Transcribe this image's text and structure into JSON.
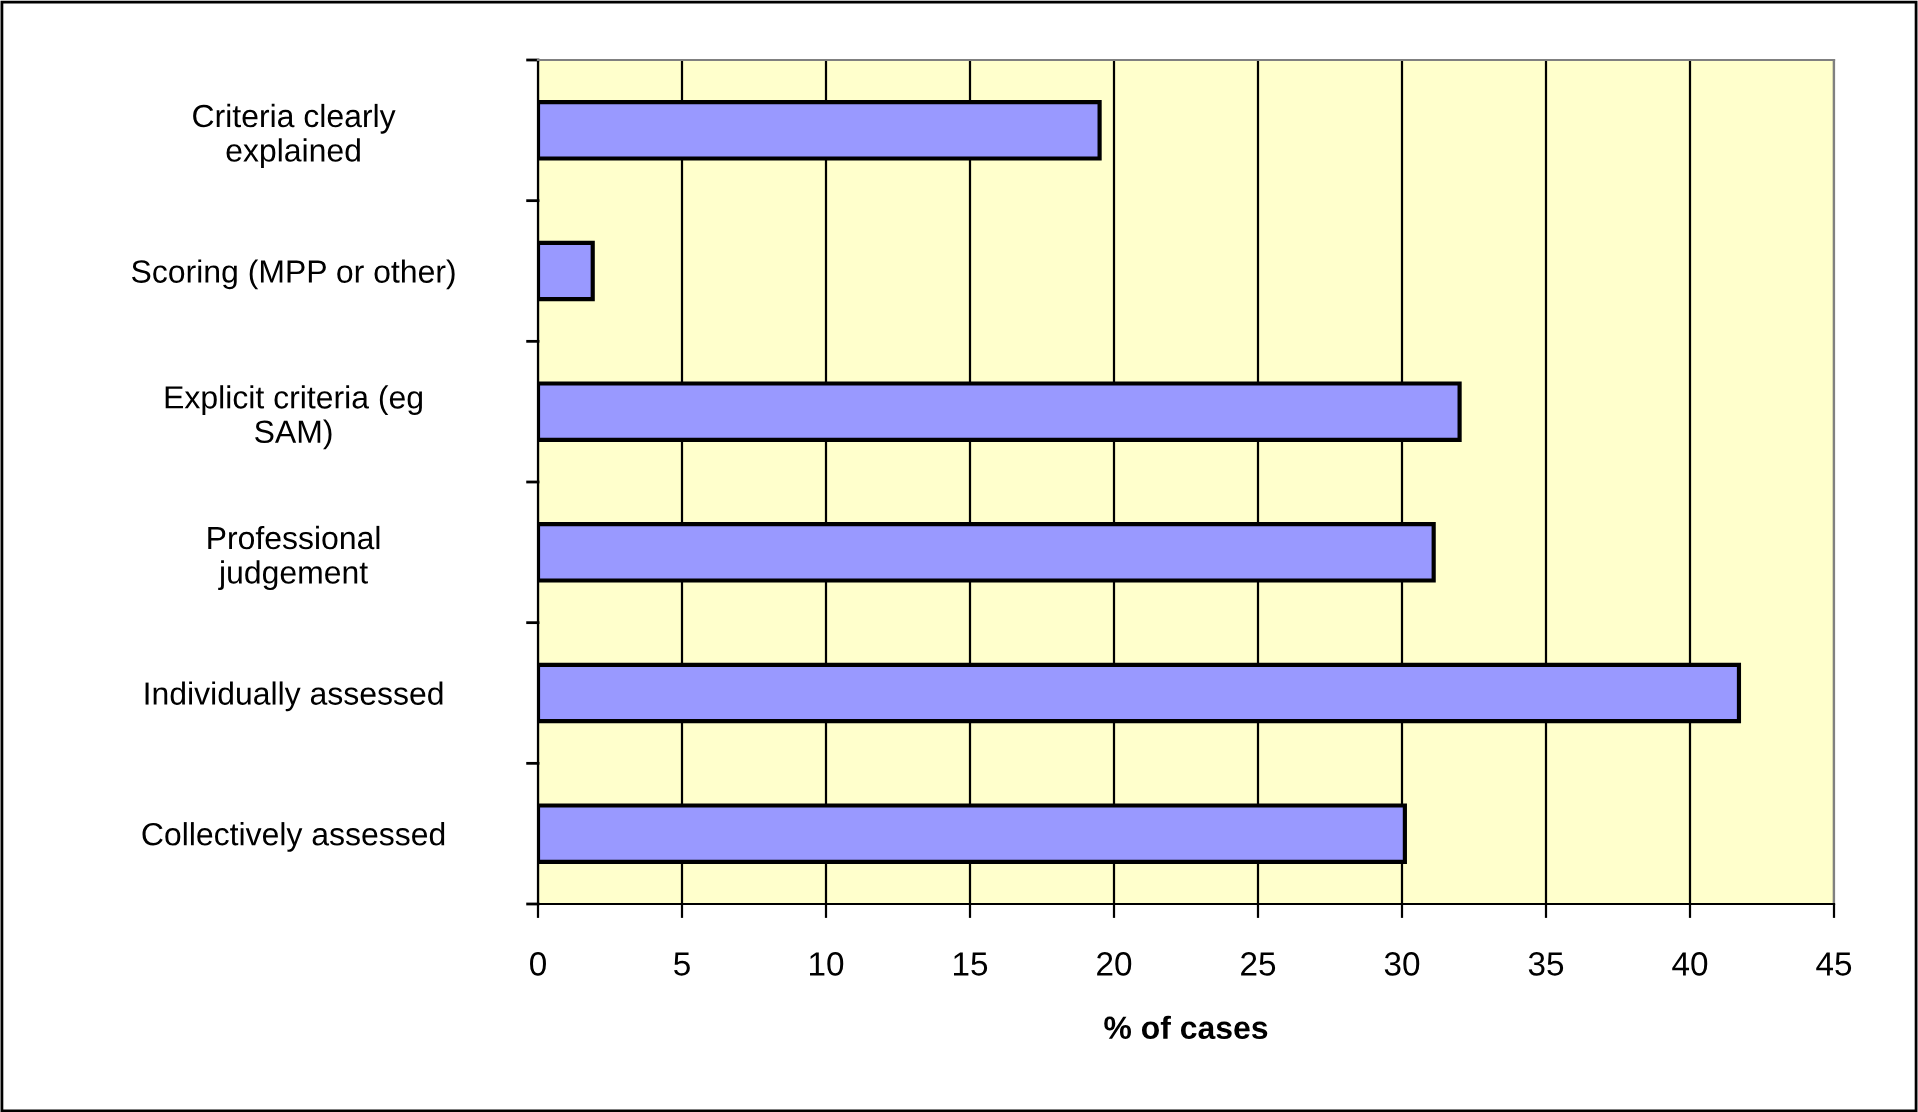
{
  "chart_data": {
    "type": "bar",
    "orientation": "horizontal",
    "xlabel": "% of cases",
    "categories": [
      "Criteria clearly\nexplained",
      "Scoring (MPP or other)",
      "Explicit criteria (eg\nSAM)",
      "Professional\njudgement",
      "Individually assessed",
      "Collectively assessed"
    ],
    "values": [
      19.5,
      1.9,
      32.0,
      31.1,
      41.7,
      30.1
    ],
    "color": "#9999ff",
    "xlim": [
      0,
      45
    ],
    "xticks": [
      0,
      5,
      10,
      15,
      20,
      25,
      30,
      35,
      40,
      45
    ],
    "grid": "x",
    "legend": false
  }
}
